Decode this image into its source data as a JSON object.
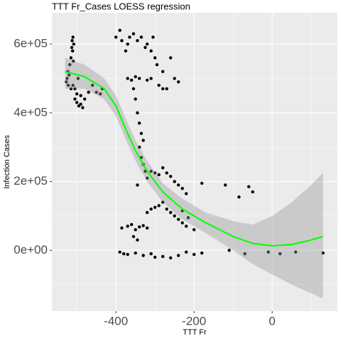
{
  "chart_data": {
    "type": "scatter",
    "title": "TTT Fr_Cases LOESS regression",
    "x_label": "TTT Fr",
    "y_label": "Infection Cases",
    "xlim": [
      -564,
      167
    ],
    "ylim": [
      -177000,
      691000
    ],
    "xticks": [
      -400,
      -200,
      0
    ],
    "yticks": [
      {
        "value": 0,
        "label": "0e+00"
      },
      {
        "value": 200000,
        "label": "2e+05"
      },
      {
        "value": 400000,
        "label": "4e+05"
      },
      {
        "value": 600000,
        "label": "6e+05"
      }
    ],
    "x_minor_grid": [
      -500,
      -300,
      -100,
      100
    ],
    "y_minor_grid": [
      -100000,
      100000,
      300000,
      500000
    ],
    "grid": true,
    "point_color": "#000000",
    "x": [
      -525,
      -522,
      -520,
      -518,
      -515,
      -513,
      -512,
      -510,
      -508,
      -515,
      -527,
      -523,
      -511,
      -509,
      -505,
      -500,
      -495,
      -490,
      -485,
      -505,
      -500,
      -490,
      -480,
      -470,
      -460,
      -450,
      -440,
      -435,
      -510,
      -497,
      -400,
      -390,
      -385,
      -375,
      -370,
      -365,
      -355,
      -345,
      -335,
      -325,
      -320,
      -310,
      -305,
      -300,
      -295,
      -280,
      -260,
      -370,
      -360,
      -350,
      -340,
      -320,
      -310,
      -290,
      -280,
      -270,
      -250,
      -240,
      -355,
      -350,
      -345,
      -340,
      -335,
      -330,
      -340,
      -335,
      -330,
      -325,
      -320,
      -345,
      -310,
      -300,
      -290,
      -280,
      -270,
      -260,
      -250,
      -240,
      -230,
      -220,
      -180,
      -120,
      -85,
      -60,
      -50,
      -320,
      -310,
      -300,
      -290,
      -280,
      -270,
      -260,
      -250,
      -240,
      -230,
      -220,
      -215,
      -200,
      -230,
      -385,
      -370,
      -360,
      -350,
      -340,
      -330,
      -320,
      -355,
      -345,
      -390,
      -380,
      -370,
      -350,
      -330,
      -310,
      -300,
      -280,
      -260,
      -240,
      -220,
      -200,
      -180,
      -110,
      -70,
      -10,
      20,
      60,
      130
    ],
    "y": [
      500000,
      480000,
      510000,
      540000,
      560000,
      590000,
      610000,
      620000,
      600000,
      470000,
      490000,
      520000,
      580000,
      550000,
      440000,
      430000,
      420000,
      425000,
      415000,
      470000,
      455000,
      450000,
      440000,
      460000,
      480000,
      460000,
      455000,
      470000,
      480000,
      500000,
      620000,
      640000,
      610000,
      580000,
      600000,
      620000,
      630000,
      610000,
      620000,
      590000,
      600000,
      580000,
      620000,
      560000,
      540000,
      520000,
      560000,
      500000,
      495000,
      505000,
      500000,
      495000,
      500000,
      480000,
      470000,
      470000,
      500000,
      490000,
      470000,
      440000,
      400000,
      370000,
      340000,
      320000,
      300000,
      270000,
      250000,
      230000,
      210000,
      190000,
      230000,
      225000,
      220000,
      240000,
      225000,
      215000,
      200000,
      190000,
      180000,
      165000,
      195000,
      190000,
      155000,
      185000,
      170000,
      110000,
      120000,
      125000,
      130000,
      140000,
      120000,
      110000,
      100000,
      90000,
      80000,
      70000,
      95000,
      60000,
      115000,
      65000,
      70000,
      75000,
      60000,
      68000,
      72000,
      65000,
      40000,
      30000,
      -5000,
      -10000,
      -12000,
      -8000,
      -15000,
      -10000,
      -20000,
      -18000,
      -22000,
      -15000,
      -5000,
      -12000,
      -8000,
      0,
      -10000,
      -5000,
      -10000,
      -5000,
      -8000
    ],
    "loess": {
      "color": "#00ff00",
      "band_color": "#999999",
      "x": [
        -530,
        -480,
        -430,
        -400,
        -370,
        -350,
        -320,
        -280,
        -230,
        -170,
        -100,
        -50,
        0,
        50,
        100,
        130
      ],
      "y": [
        520000,
        505000,
        470000,
        420000,
        340000,
        290000,
        230000,
        170000,
        120000,
        80000,
        40000,
        20000,
        13000,
        17000,
        30000,
        40000
      ],
      "lower": [
        470000,
        470000,
        440000,
        390000,
        310000,
        260000,
        200000,
        140000,
        90000,
        50000,
        0,
        -40000,
        -70000,
        -100000,
        -125000,
        -140000
      ],
      "upper": [
        560000,
        540000,
        500000,
        450000,
        370000,
        320000,
        260000,
        195000,
        150000,
        110000,
        85000,
        75000,
        100000,
        140000,
        190000,
        225000
      ]
    }
  }
}
